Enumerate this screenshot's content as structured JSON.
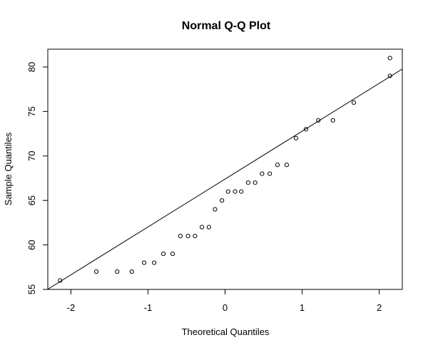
{
  "chart_data": {
    "type": "scatter",
    "title": "Normal Q-Q Plot",
    "xlabel": "Theoretical Quantiles",
    "ylabel": "Sample Quantiles",
    "xlim": [
      -2.3,
      2.3
    ],
    "ylim": [
      55,
      82
    ],
    "x_ticks": [
      -2,
      -1,
      0,
      1,
      2
    ],
    "x_tick_labels": [
      "-2",
      "-1",
      "0",
      "1",
      "2"
    ],
    "y_ticks": [
      55,
      60,
      65,
      70,
      75,
      80
    ],
    "y_tick_labels": [
      "55",
      "60",
      "65",
      "70",
      "75",
      "80"
    ],
    "grid": false,
    "points": [
      {
        "x": -2.14,
        "y": 56
      },
      {
        "x": -1.67,
        "y": 57
      },
      {
        "x": -1.4,
        "y": 57
      },
      {
        "x": -1.21,
        "y": 57
      },
      {
        "x": -1.05,
        "y": 58
      },
      {
        "x": -0.92,
        "y": 58
      },
      {
        "x": -0.8,
        "y": 59
      },
      {
        "x": -0.68,
        "y": 59
      },
      {
        "x": -0.58,
        "y": 61
      },
      {
        "x": -0.48,
        "y": 61
      },
      {
        "x": -0.39,
        "y": 61
      },
      {
        "x": -0.3,
        "y": 62
      },
      {
        "x": -0.21,
        "y": 62
      },
      {
        "x": -0.13,
        "y": 64
      },
      {
        "x": -0.04,
        "y": 65
      },
      {
        "x": 0.04,
        "y": 66
      },
      {
        "x": 0.13,
        "y": 66
      },
      {
        "x": 0.21,
        "y": 66
      },
      {
        "x": 0.3,
        "y": 67
      },
      {
        "x": 0.39,
        "y": 67
      },
      {
        "x": 0.48,
        "y": 68
      },
      {
        "x": 0.58,
        "y": 68
      },
      {
        "x": 0.68,
        "y": 69
      },
      {
        "x": 0.8,
        "y": 69
      },
      {
        "x": 0.92,
        "y": 72
      },
      {
        "x": 1.05,
        "y": 73
      },
      {
        "x": 1.21,
        "y": 74
      },
      {
        "x": 1.4,
        "y": 74
      },
      {
        "x": 1.67,
        "y": 76
      },
      {
        "x": 2.14,
        "y": 79
      },
      {
        "x": 2.14,
        "y": 81
      }
    ],
    "reference_line": {
      "slope": 5.38,
      "intercept": 67.4
    }
  }
}
